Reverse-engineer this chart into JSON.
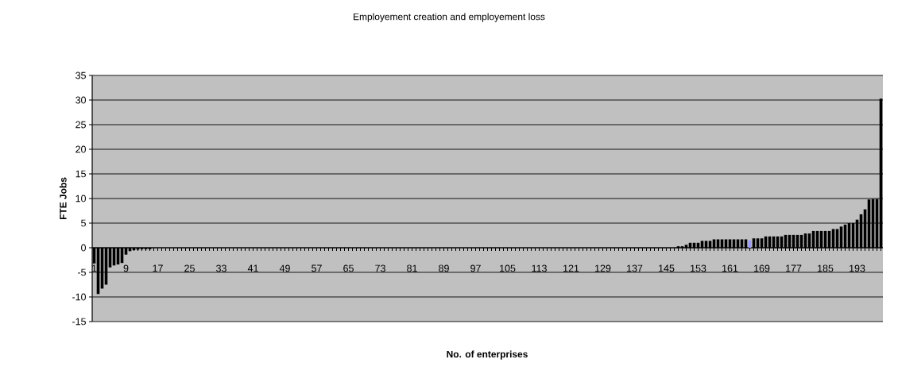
{
  "chart_data": {
    "type": "bar",
    "title": "Employement creation and employement loss",
    "xlabel": "No. of enterprises",
    "ylabel": "FTE Jobs",
    "categories": [
      "1",
      null,
      null,
      null,
      null,
      null,
      null,
      null,
      "9",
      null,
      null,
      null,
      null,
      null,
      null,
      null,
      "17",
      null,
      null,
      null,
      null,
      null,
      null,
      null,
      "25",
      null,
      null,
      null,
      null,
      null,
      null,
      null,
      "33",
      null,
      null,
      null,
      null,
      null,
      null,
      null,
      "41",
      null,
      null,
      null,
      null,
      null,
      null,
      null,
      "49",
      null,
      null,
      null,
      null,
      null,
      null,
      null,
      "57",
      null,
      null,
      null,
      null,
      null,
      null,
      null,
      "65",
      null,
      null,
      null,
      null,
      null,
      null,
      null,
      "73",
      null,
      null,
      null,
      null,
      null,
      null,
      null,
      "81",
      null,
      null,
      null,
      null,
      null,
      null,
      null,
      "89",
      null,
      null,
      null,
      null,
      null,
      null,
      null,
      "97",
      null,
      null,
      null,
      null,
      null,
      null,
      null,
      "105",
      null,
      null,
      null,
      null,
      null,
      null,
      null,
      "113",
      null,
      null,
      null,
      null,
      null,
      null,
      null,
      "121",
      null,
      null,
      null,
      null,
      null,
      null,
      null,
      "129",
      null,
      null,
      null,
      null,
      null,
      null,
      null,
      "137",
      null,
      null,
      null,
      null,
      null,
      null,
      null,
      "145",
      null,
      null,
      null,
      null,
      null,
      null,
      null,
      "153",
      null,
      null,
      null,
      null,
      null,
      null,
      null,
      "161",
      null,
      null,
      null,
      null,
      null,
      null,
      null,
      "169",
      null,
      null,
      null,
      null,
      null,
      null,
      null,
      "177",
      null,
      null,
      null,
      null,
      null,
      null,
      null,
      "185",
      null,
      null,
      null,
      null,
      null,
      null,
      null,
      "193",
      null,
      null,
      null,
      null,
      null,
      null
    ],
    "values": [
      -3.2,
      -9.4,
      -8.3,
      -7.5,
      -4.0,
      -3.6,
      -3.4,
      -3.1,
      -1.4,
      -0.7,
      -0.5,
      -0.4,
      -0.3,
      -0.3,
      -0.3,
      0,
      0,
      0,
      0,
      0,
      0,
      0,
      0,
      0,
      0,
      0,
      0,
      0,
      0,
      0,
      0,
      0,
      0,
      0,
      0,
      0,
      0,
      0,
      0,
      0,
      0,
      0,
      0,
      0,
      0,
      0,
      0,
      0,
      0,
      0,
      0,
      0,
      0,
      0,
      0,
      0,
      0,
      0,
      0,
      0,
      0,
      0,
      0,
      0,
      0,
      0,
      0,
      0,
      0,
      0,
      0,
      0,
      0,
      0,
      0,
      0,
      0,
      0,
      0,
      0,
      0,
      0,
      0,
      0,
      0,
      0,
      0,
      0,
      0,
      0,
      0,
      0,
      0,
      0,
      0,
      0,
      0,
      0,
      0,
      0,
      0,
      0,
      0,
      0,
      0,
      0,
      0,
      0,
      0,
      0,
      0,
      0,
      0,
      0,
      0,
      0,
      0,
      0,
      0,
      0,
      0,
      0,
      0,
      0,
      0,
      0,
      0,
      0,
      0,
      0,
      0,
      0,
      0,
      0,
      0,
      0,
      0,
      0,
      0,
      0,
      0,
      0,
      0,
      0,
      0,
      0,
      0,
      0.3,
      0.3,
      0.6,
      1.0,
      1.0,
      1.0,
      1.4,
      1.4,
      1.4,
      1.7,
      1.7,
      1.7,
      1.7,
      1.7,
      1.7,
      1.7,
      1.7,
      1.7,
      1.5,
      1.9,
      1.9,
      1.9,
      2.3,
      2.3,
      2.3,
      2.3,
      2.3,
      2.6,
      2.6,
      2.6,
      2.6,
      2.6,
      2.9,
      2.9,
      3.4,
      3.4,
      3.4,
      3.4,
      3.4,
      3.8,
      3.8,
      4.3,
      4.7,
      5.0,
      5.0,
      5.7,
      6.8,
      7.8,
      9.8,
      9.9,
      9.9,
      30.3
    ],
    "colors": [
      "#000000",
      "#000000",
      "#000000",
      "#000000",
      "#000000",
      "#000000",
      "#000000",
      "#000000",
      "#000000",
      "#000000",
      "#000000",
      "#000000",
      "#000000",
      "#000000",
      "#000000",
      "#000000",
      "#000000",
      "#000000",
      "#000000",
      "#000000",
      "#000000",
      "#000000",
      "#000000",
      "#000000",
      "#000000",
      "#000000",
      "#000000",
      "#000000",
      "#000000",
      "#000000",
      "#000000",
      "#000000",
      "#000000",
      "#000000",
      "#000000",
      "#000000",
      "#000000",
      "#000000",
      "#000000",
      "#000000",
      "#000000",
      "#000000",
      "#000000",
      "#000000",
      "#000000",
      "#000000",
      "#000000",
      "#000000",
      "#000000",
      "#000000",
      "#000000",
      "#000000",
      "#000000",
      "#000000",
      "#000000",
      "#000000",
      "#000000",
      "#000000",
      "#000000",
      "#000000",
      "#000000",
      "#000000",
      "#000000",
      "#000000",
      "#000000",
      "#000000",
      "#000000",
      "#000000",
      "#000000",
      "#000000",
      "#000000",
      "#000000",
      "#000000",
      "#000000",
      "#000000",
      "#000000",
      "#000000",
      "#000000",
      "#000000",
      "#000000",
      "#000000",
      "#000000",
      "#000000",
      "#000000",
      "#000000",
      "#000000",
      "#000000",
      "#000000",
      "#000000",
      "#000000",
      "#000000",
      "#000000",
      "#000000",
      "#000000",
      "#000000",
      "#000000",
      "#000000",
      "#000000",
      "#000000",
      "#000000",
      "#000000",
      "#000000",
      "#000000",
      "#000000",
      "#000000",
      "#000000",
      "#000000",
      "#000000",
      "#000000",
      "#000000",
      "#000000",
      "#000000",
      "#000000",
      "#000000",
      "#000000",
      "#000000",
      "#000000",
      "#000000",
      "#000000",
      "#000000",
      "#000000",
      "#000000",
      "#000000",
      "#000000",
      "#000000",
      "#000000",
      "#000000",
      "#000000",
      "#000000",
      "#000000",
      "#000000",
      "#000000",
      "#000000",
      "#000000",
      "#000000",
      "#000000",
      "#000000",
      "#000000",
      "#000000",
      "#000000",
      "#000000",
      "#000000",
      "#000000",
      "#000000",
      "#000000",
      "#000000",
      "#000000",
      "#000000",
      "#000000",
      "#000000",
      "#000000",
      "#000000",
      "#000000",
      "#000000",
      "#000000",
      "#000000",
      "#000000",
      "#000000",
      "#000000",
      "#000000",
      "#000000",
      "#000000",
      "#000000",
      "#000000",
      "#000000",
      "#9999ff",
      "#000000",
      "#000000",
      "#000000",
      "#000000",
      "#000000",
      "#000000",
      "#000000",
      "#000000",
      "#000000",
      "#000000",
      "#000000",
      "#000000",
      "#000000",
      "#000000",
      "#000000",
      "#000000",
      "#000000",
      "#000000",
      "#000000",
      "#000000",
      "#000000",
      "#000000",
      "#000000",
      "#000000",
      "#000000",
      "#000000",
      "#000000",
      "#000000",
      "#000000",
      "#000000",
      "#000000",
      "#000000",
      "#000000"
    ],
    "ylim": [
      -15,
      35
    ],
    "yticks": [
      -15,
      -10,
      -5,
      0,
      5,
      10,
      15,
      20,
      25,
      30,
      35
    ],
    "grid": "y"
  }
}
